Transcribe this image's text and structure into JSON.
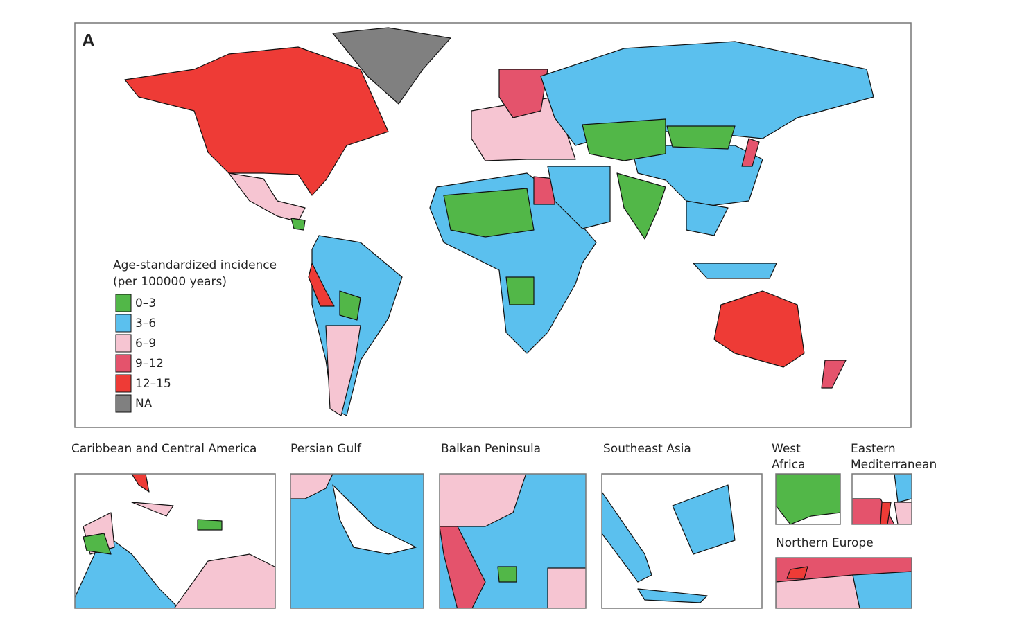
{
  "panel_label": "A",
  "legend": {
    "title": [
      "Age-standardized incidence",
      "(per 100000 years)"
    ],
    "items": [
      {
        "label": "0–3",
        "color": "#52b748"
      },
      {
        "label": "3–6",
        "color": "#5bc0ee"
      },
      {
        "label": "6–9",
        "color": "#f6c5d2"
      },
      {
        "label": "9–12",
        "color": "#e4536c"
      },
      {
        "label": "12–15",
        "color": "#ee3b36"
      },
      {
        "label": "NA",
        "color": "#808080"
      }
    ]
  },
  "insets": [
    {
      "title": [
        "Caribbean and Central America"
      ]
    },
    {
      "title": [
        "Persian Gulf"
      ]
    },
    {
      "title": [
        "Balkan Peninsula"
      ]
    },
    {
      "title": [
        "Southeast Asia"
      ]
    },
    {
      "title": [
        "West",
        "Africa"
      ]
    },
    {
      "title": [
        "Eastern",
        "Mediterranean"
      ]
    },
    {
      "title": [
        "Northern Europe"
      ]
    }
  ]
}
